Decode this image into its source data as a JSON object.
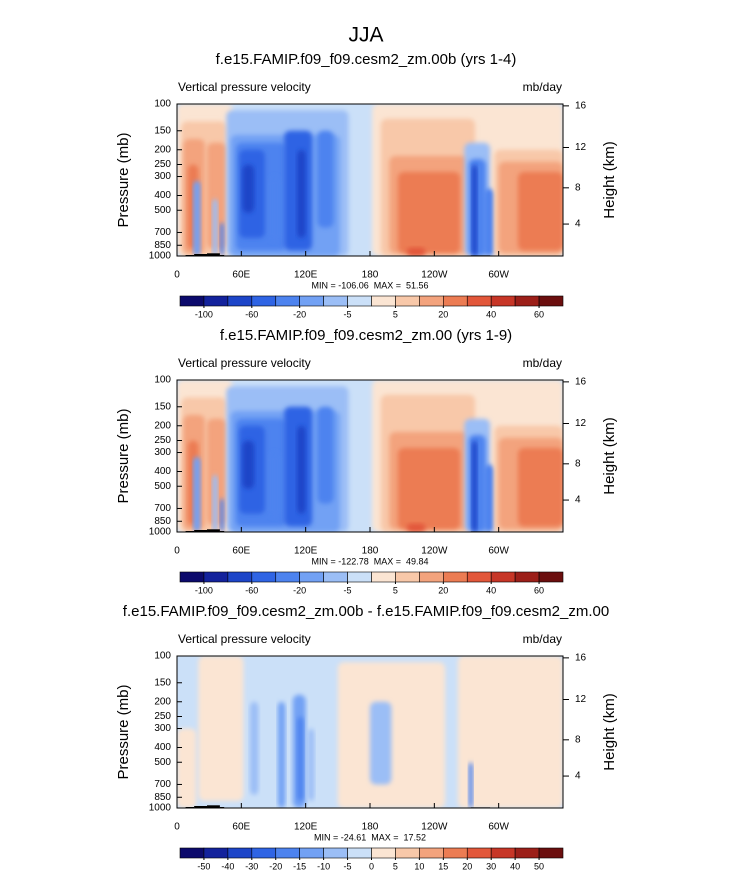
{
  "title": "JJA",
  "chart_data": [
    {
      "type": "contour",
      "title": "f.e15.FAMIP.f09_f09.cesm2_zm.00b (yrs 1-4)",
      "left_label": "Vertical pressure velocity",
      "right_label": "mb/day",
      "ylabel": "Pressure (mb)",
      "y2label": "Height (km)",
      "stats": "MIN = -106.06  MAX =  51.56",
      "xlim": [
        0,
        360
      ],
      "xticks": [
        0,
        {
          "value": 60,
          "label": "60E"
        },
        {
          "value": 120,
          "label": "120E"
        },
        180,
        {
          "value": 240,
          "label": "120W"
        },
        {
          "value": 300,
          "label": "60W"
        }
      ],
      "ylim": [
        1000,
        100
      ],
      "log_y": true,
      "yticks": [
        100,
        150,
        200,
        250,
        300,
        400,
        500,
        700,
        850,
        1000
      ],
      "y2ticks": [
        4,
        8,
        12,
        16
      ],
      "colorbar": {
        "colors": [
          "#0c0a6c",
          "#13229c",
          "#1d45c8",
          "#2f64e4",
          "#4d83ef",
          "#72a1f4",
          "#9bbef6",
          "#cbe0f8",
          "#fbe5d3",
          "#f8c8a9",
          "#f3a37d",
          "#ec7c53",
          "#e2573a",
          "#c73627",
          "#9c1f19",
          "#6b0e0e"
        ],
        "labels": [
          -100,
          -60,
          -20,
          -5,
          5,
          20,
          40,
          60
        ]
      }
    },
    {
      "type": "contour",
      "title": "f.e15.FAMIP.f09_f09.cesm2_zm.00 (yrs 1-9)",
      "left_label": "Vertical pressure velocity",
      "right_label": "mb/day",
      "ylabel": "Pressure (mb)",
      "y2label": "Height (km)",
      "stats": "MIN = -122.78  MAX =  49.84",
      "xlim": [
        0,
        360
      ],
      "xticks": [
        0,
        {
          "value": 60,
          "label": "60E"
        },
        {
          "value": 120,
          "label": "120E"
        },
        180,
        {
          "value": 240,
          "label": "120W"
        },
        {
          "value": 300,
          "label": "60W"
        }
      ],
      "ylim": [
        1000,
        100
      ],
      "log_y": true,
      "yticks": [
        100,
        150,
        200,
        250,
        300,
        400,
        500,
        700,
        850,
        1000
      ],
      "y2ticks": [
        4,
        8,
        12,
        16
      ],
      "colorbar": {
        "colors": [
          "#0c0a6c",
          "#13229c",
          "#1d45c8",
          "#2f64e4",
          "#4d83ef",
          "#72a1f4",
          "#9bbef6",
          "#cbe0f8",
          "#fbe5d3",
          "#f8c8a9",
          "#f3a37d",
          "#ec7c53",
          "#e2573a",
          "#c73627",
          "#9c1f19",
          "#6b0e0e"
        ],
        "labels": [
          -100,
          -60,
          -20,
          -5,
          5,
          20,
          40,
          60
        ]
      }
    },
    {
      "type": "contour",
      "title": "f.e15.FAMIP.f09_f09.cesm2_zm.00b - f.e15.FAMIP.f09_f09.cesm2_zm.00",
      "left_label": "Vertical pressure velocity",
      "right_label": "mb/day",
      "ylabel": "Pressure (mb)",
      "y2label": "Height (km)",
      "stats": "MIN = -24.61  MAX =  17.52",
      "xlim": [
        0,
        360
      ],
      "xticks": [
        0,
        {
          "value": 60,
          "label": "60E"
        },
        {
          "value": 120,
          "label": "120E"
        },
        180,
        {
          "value": 240,
          "label": "120W"
        },
        {
          "value": 300,
          "label": "60W"
        }
      ],
      "ylim": [
        1000,
        100
      ],
      "log_y": true,
      "yticks": [
        100,
        150,
        200,
        250,
        300,
        400,
        500,
        700,
        850,
        1000
      ],
      "y2ticks": [
        4,
        8,
        12,
        16
      ],
      "colorbar": {
        "colors": [
          "#0c0a6c",
          "#13229c",
          "#1d45c8",
          "#2f64e4",
          "#4d83ef",
          "#72a1f4",
          "#9bbef6",
          "#cbe0f8",
          "#fbe5d3",
          "#f8c8a9",
          "#f3a37d",
          "#ec7c53",
          "#e2573a",
          "#c73627",
          "#9c1f19",
          "#6b0e0e"
        ],
        "labels": [
          -50,
          -40,
          -30,
          -20,
          -15,
          -10,
          -5,
          0,
          5,
          10,
          15,
          20,
          30,
          40,
          50
        ]
      }
    }
  ]
}
